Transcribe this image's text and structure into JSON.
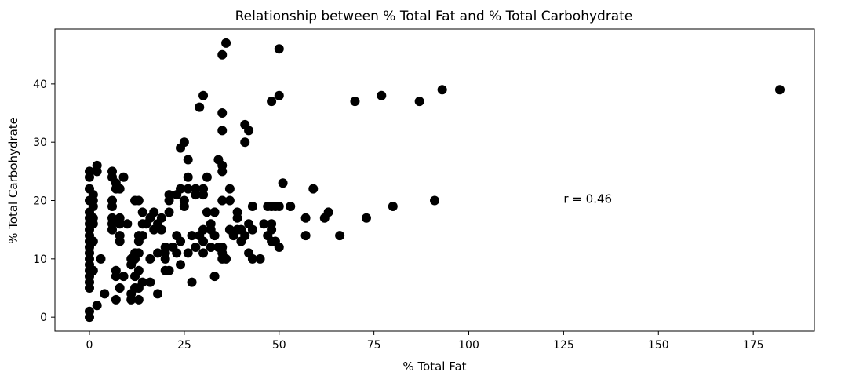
{
  "chart_data": {
    "type": "scatter",
    "title": "Relationship between % Total Fat and % Total Carbohydrate",
    "xlabel": "% Total Fat",
    "ylabel": "% Total Carbohydrate",
    "xlim": [
      -9.1,
      191.1
    ],
    "ylim": [
      -2.4,
      49.4
    ],
    "xticks": [
      0,
      25,
      50,
      75,
      100,
      125,
      150,
      175
    ],
    "yticks": [
      0,
      10,
      20,
      30,
      40
    ],
    "grid": false,
    "annotation": {
      "text": "r = 0.46",
      "x": 125,
      "y": 20.3
    },
    "marker_color": "#000000",
    "points": [
      [
        0,
        0
      ],
      [
        0,
        1
      ],
      [
        0,
        5
      ],
      [
        0,
        6
      ],
      [
        0,
        7
      ],
      [
        0,
        8
      ],
      [
        0,
        9
      ],
      [
        0,
        10
      ],
      [
        0,
        11
      ],
      [
        0,
        12
      ],
      [
        0,
        13
      ],
      [
        0,
        14
      ],
      [
        0,
        15
      ],
      [
        0,
        16
      ],
      [
        0,
        17
      ],
      [
        0,
        18
      ],
      [
        0,
        20
      ],
      [
        0,
        22
      ],
      [
        0,
        24
      ],
      [
        0,
        25
      ],
      [
        1,
        8
      ],
      [
        1,
        13
      ],
      [
        1,
        16
      ],
      [
        1,
        17
      ],
      [
        1,
        19
      ],
      [
        1,
        20
      ],
      [
        1,
        21
      ],
      [
        2,
        2
      ],
      [
        2,
        25
      ],
      [
        2,
        26
      ],
      [
        3,
        10
      ],
      [
        4,
        4
      ],
      [
        6,
        15
      ],
      [
        6,
        16
      ],
      [
        6,
        17
      ],
      [
        6,
        19
      ],
      [
        6,
        20
      ],
      [
        6,
        24
      ],
      [
        6,
        25
      ],
      [
        7,
        3
      ],
      [
        7,
        7
      ],
      [
        7,
        8
      ],
      [
        7,
        22
      ],
      [
        7,
        23
      ],
      [
        8,
        5
      ],
      [
        8,
        13
      ],
      [
        8,
        14
      ],
      [
        8,
        16
      ],
      [
        8,
        17
      ],
      [
        8,
        22
      ],
      [
        9,
        7
      ],
      [
        9,
        24
      ],
      [
        10,
        16
      ],
      [
        11,
        3
      ],
      [
        11,
        4
      ],
      [
        11,
        9
      ],
      [
        11,
        10
      ],
      [
        12,
        5
      ],
      [
        12,
        7
      ],
      [
        12,
        10
      ],
      [
        12,
        11
      ],
      [
        12,
        20
      ],
      [
        13,
        3
      ],
      [
        13,
        5
      ],
      [
        13,
        8
      ],
      [
        13,
        11
      ],
      [
        13,
        13
      ],
      [
        13,
        14
      ],
      [
        13,
        20
      ],
      [
        14,
        6
      ],
      [
        14,
        14
      ],
      [
        14,
        16
      ],
      [
        14,
        18
      ],
      [
        15,
        16
      ],
      [
        16,
        6
      ],
      [
        16,
        10
      ],
      [
        16,
        17
      ],
      [
        17,
        15
      ],
      [
        17,
        18
      ],
      [
        18,
        4
      ],
      [
        18,
        11
      ],
      [
        18,
        16
      ],
      [
        19,
        15
      ],
      [
        19,
        17
      ],
      [
        20,
        8
      ],
      [
        20,
        10
      ],
      [
        20,
        11
      ],
      [
        20,
        12
      ],
      [
        21,
        8
      ],
      [
        21,
        18
      ],
      [
        21,
        20
      ],
      [
        21,
        21
      ],
      [
        22,
        12
      ],
      [
        23,
        11
      ],
      [
        23,
        14
      ],
      [
        23,
        21
      ],
      [
        24,
        9
      ],
      [
        24,
        13
      ],
      [
        24,
        22
      ],
      [
        24,
        29
      ],
      [
        25,
        19
      ],
      [
        25,
        20
      ],
      [
        25,
        30
      ],
      [
        26,
        11
      ],
      [
        26,
        22
      ],
      [
        26,
        24
      ],
      [
        26,
        27
      ],
      [
        27,
        6
      ],
      [
        27,
        14
      ],
      [
        28,
        12
      ],
      [
        28,
        21
      ],
      [
        28,
        22
      ],
      [
        29,
        14
      ],
      [
        29,
        36
      ],
      [
        30,
        11
      ],
      [
        30,
        13
      ],
      [
        30,
        15
      ],
      [
        30,
        21
      ],
      [
        30,
        22
      ],
      [
        30,
        38
      ],
      [
        31,
        18
      ],
      [
        31,
        24
      ],
      [
        32,
        12
      ],
      [
        32,
        15
      ],
      [
        32,
        16
      ],
      [
        33,
        7
      ],
      [
        33,
        14
      ],
      [
        33,
        18
      ],
      [
        34,
        12
      ],
      [
        34,
        27
      ],
      [
        35,
        10
      ],
      [
        35,
        11
      ],
      [
        35,
        12
      ],
      [
        35,
        20
      ],
      [
        35,
        25
      ],
      [
        35,
        26
      ],
      [
        35,
        32
      ],
      [
        35,
        35
      ],
      [
        35,
        45
      ],
      [
        36,
        10
      ],
      [
        36,
        47
      ],
      [
        37,
        15
      ],
      [
        37,
        20
      ],
      [
        37,
        22
      ],
      [
        38,
        14
      ],
      [
        39,
        15
      ],
      [
        39,
        17
      ],
      [
        39,
        18
      ],
      [
        40,
        13
      ],
      [
        40,
        15
      ],
      [
        41,
        14
      ],
      [
        41,
        30
      ],
      [
        41,
        33
      ],
      [
        42,
        11
      ],
      [
        42,
        16
      ],
      [
        42,
        32
      ],
      [
        43,
        10
      ],
      [
        43,
        15
      ],
      [
        43,
        19
      ],
      [
        45,
        10
      ],
      [
        46,
        16
      ],
      [
        47,
        14
      ],
      [
        47,
        19
      ],
      [
        48,
        13
      ],
      [
        48,
        15
      ],
      [
        48,
        16
      ],
      [
        48,
        19
      ],
      [
        48,
        37
      ],
      [
        49,
        13
      ],
      [
        49,
        19
      ],
      [
        50,
        12
      ],
      [
        50,
        19
      ],
      [
        50,
        38
      ],
      [
        50,
        46
      ],
      [
        51,
        23
      ],
      [
        53,
        19
      ],
      [
        57,
        14
      ],
      [
        57,
        17
      ],
      [
        59,
        22
      ],
      [
        62,
        17
      ],
      [
        63,
        18
      ],
      [
        66,
        14
      ],
      [
        70,
        37
      ],
      [
        73,
        17
      ],
      [
        77,
        38
      ],
      [
        80,
        19
      ],
      [
        87,
        37
      ],
      [
        91,
        20
      ],
      [
        93,
        39
      ],
      [
        182,
        39
      ]
    ]
  }
}
